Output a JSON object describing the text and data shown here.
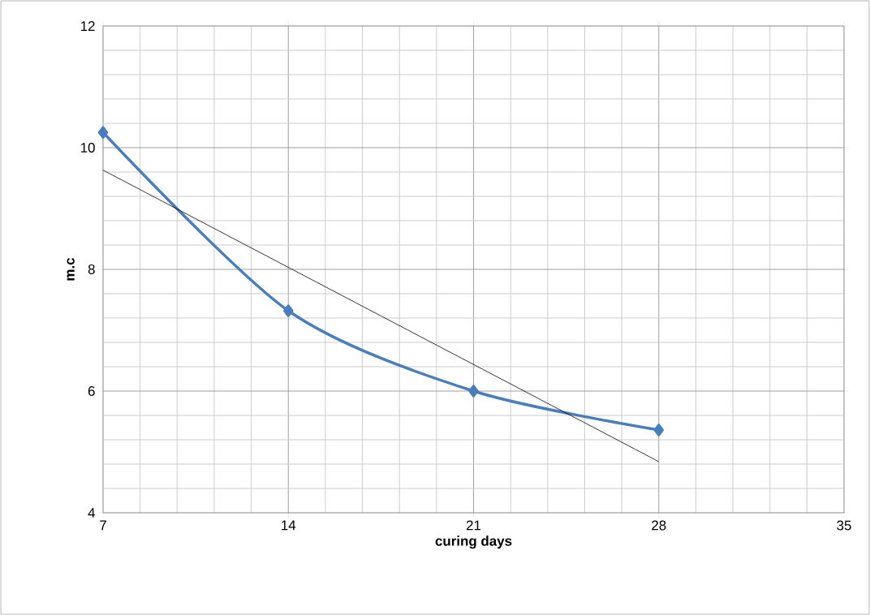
{
  "chart_data": {
    "type": "line",
    "xlabel": "curing days",
    "ylabel": "m.c",
    "x": [
      7,
      14,
      21,
      28
    ],
    "series": [
      {
        "color": "#4a7ebb",
        "values": [
          10.25,
          7.32,
          6.0,
          5.36
        ],
        "marker": "diamond"
      },
      {
        "type": "line",
        "color": "#000000",
        "x": [
          7,
          28
        ],
        "values": [
          9.63,
          4.84
        ],
        "marker": "none"
      }
    ],
    "xlim": [
      7,
      35
    ],
    "xticks": [
      7,
      14,
      21,
      28,
      35
    ],
    "ylim": [
      4,
      12
    ],
    "yticks": [
      4,
      6,
      8,
      10,
      12
    ],
    "grid": true
  }
}
